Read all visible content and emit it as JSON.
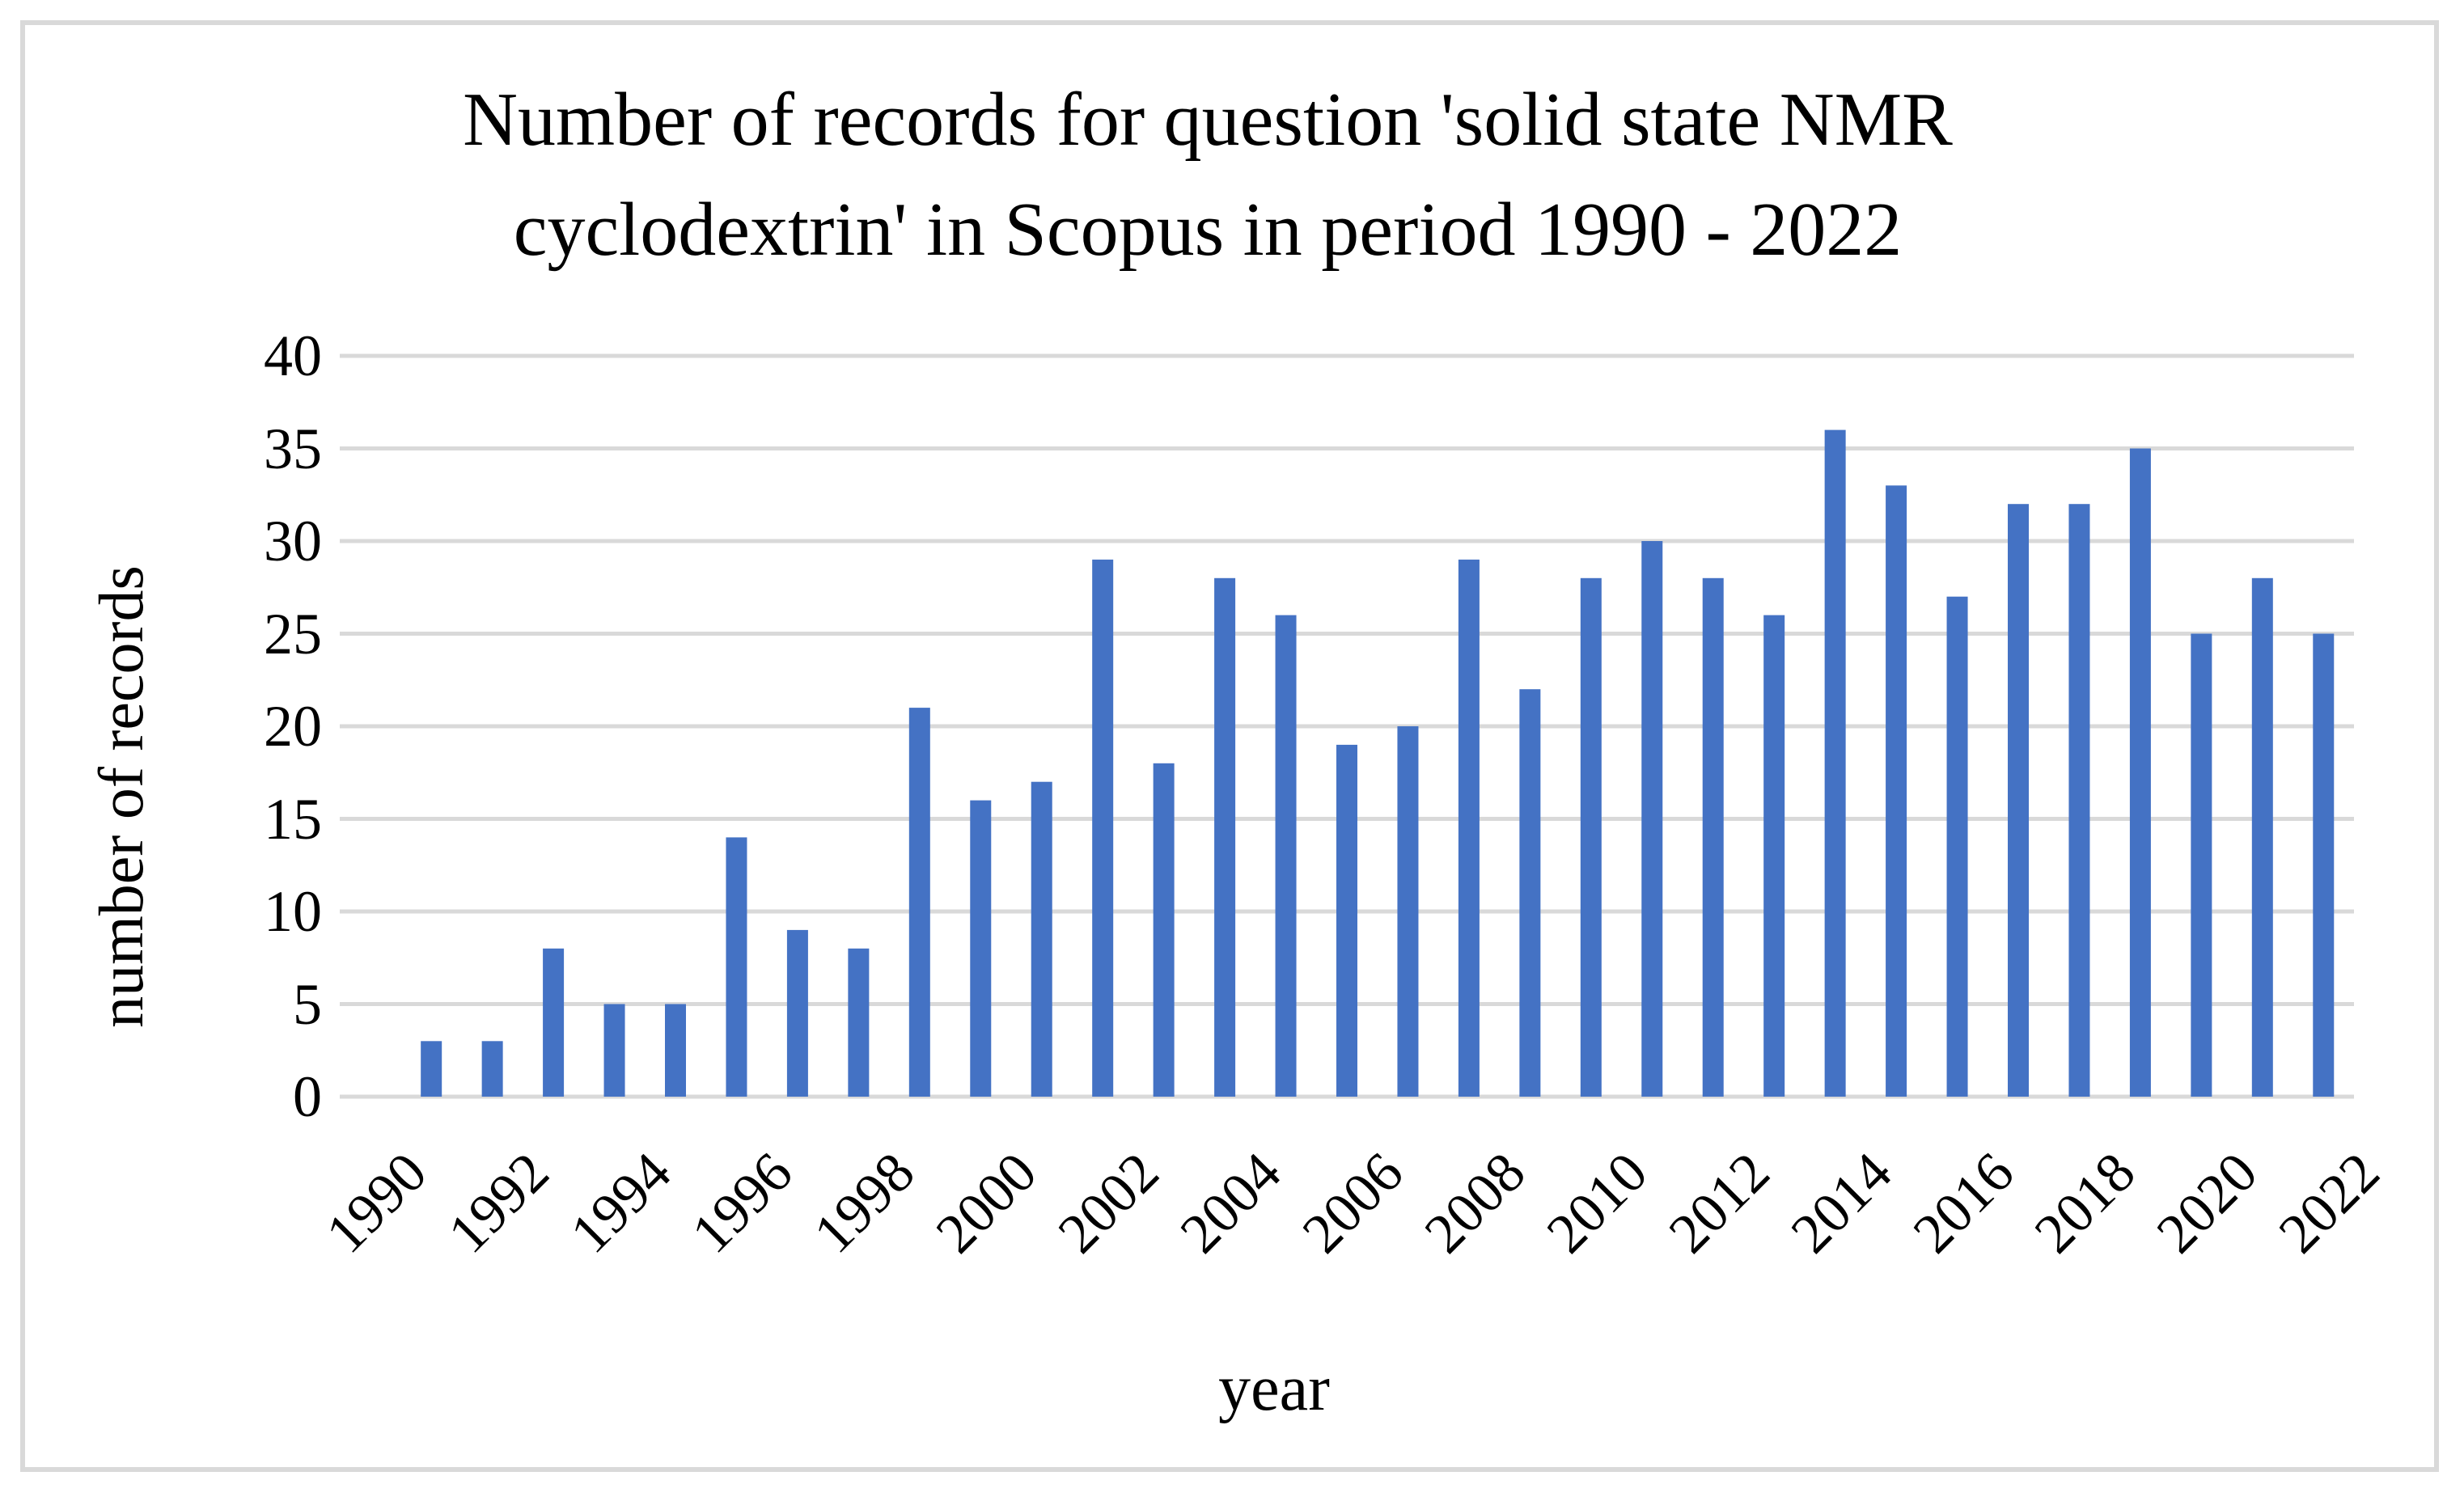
{
  "figure": {
    "title_line1": "Number of records for question 'solid state NMR",
    "title_line2": "cyclodextrin' in Scopus in period 1990 - 2022"
  },
  "chart_data": {
    "type": "bar",
    "title": "Number of records for question 'solid state NMR cyclodextrin' in Scopus in period 1990 - 2022",
    "xlabel": "year",
    "ylabel": "number of records",
    "categories": [
      "1990",
      "1991",
      "1992",
      "1993",
      "1994",
      "1995",
      "1996",
      "1997",
      "1998",
      "1999",
      "2000",
      "2001",
      "2002",
      "2003",
      "2004",
      "2005",
      "2006",
      "2007",
      "2008",
      "2009",
      "2010",
      "2011",
      "2012",
      "2013",
      "2014",
      "2015",
      "2016",
      "2017",
      "2018",
      "2019",
      "2020",
      "2021",
      "2022"
    ],
    "values": [
      0,
      3,
      3,
      8,
      5,
      5,
      14,
      9,
      8,
      21,
      16,
      17,
      29,
      18,
      28,
      26,
      19,
      20,
      29,
      22,
      28,
      30,
      28,
      26,
      36,
      33,
      27,
      32,
      32,
      35,
      25,
      28,
      25
    ],
    "ylim": [
      0,
      40
    ],
    "ytick_step": 5,
    "y_ticks": [
      0,
      5,
      10,
      15,
      20,
      25,
      30,
      35,
      40
    ],
    "x_tick_labels": [
      "1990",
      "1992",
      "1994",
      "1996",
      "1998",
      "2000",
      "2002",
      "2004",
      "2006",
      "2008",
      "2010",
      "2012",
      "2014",
      "2016",
      "2018",
      "2020",
      "2022"
    ],
    "xtick_label_every": 2,
    "grid": "horizontal",
    "legend": "none",
    "bar_color": "#4472C4",
    "gridline_color": "#D9D9D9",
    "frame_color": "#D9D9D9",
    "text_color": "#000000"
  }
}
